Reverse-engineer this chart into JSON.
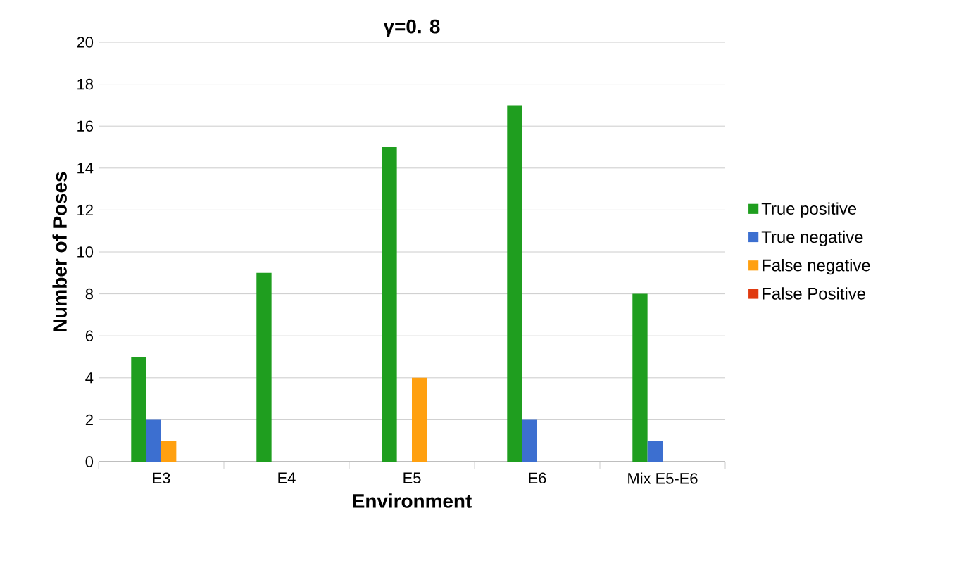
{
  "chart_data": {
    "type": "bar",
    "title": "γ=0. 8",
    "xlabel": "Environment",
    "ylabel": "Number of Poses",
    "categories": [
      "E3",
      "E4",
      "E5",
      "E6",
      "Mix E5-E6"
    ],
    "series": [
      {
        "name": "True positive",
        "color": "#1f9e1f",
        "values": [
          5,
          9,
          15,
          17,
          8
        ]
      },
      {
        "name": "True negative",
        "color": "#3c6fd0",
        "values": [
          2,
          0,
          0,
          2,
          1
        ]
      },
      {
        "name": "False negative",
        "color": "#ffa010",
        "values": [
          1,
          0,
          4,
          0,
          0
        ]
      },
      {
        "name": "False Positive",
        "color": "#e03a10",
        "values": [
          0,
          0,
          0,
          0,
          0
        ]
      }
    ],
    "ylim": [
      0,
      20
    ],
    "yticks": [
      0,
      2,
      4,
      6,
      8,
      10,
      12,
      14,
      16,
      18,
      20
    ],
    "grid": "y",
    "legend": "right"
  }
}
